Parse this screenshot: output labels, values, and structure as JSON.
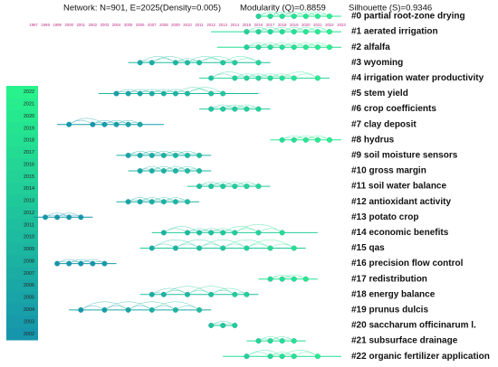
{
  "chart_data": {
    "type": "timeline",
    "header": [
      "Network: N=901, E=2025(Density=0.005)",
      "Modularity (Q)=0.8859",
      "Silhouette (S)=0.9346"
    ],
    "xlim": [
      1997,
      2023
    ],
    "xticks": [
      1997,
      1998,
      1999,
      2000,
      2001,
      2002,
      2003,
      2004,
      2005,
      2006,
      2007,
      2008,
      2009,
      2010,
      2011,
      2012,
      2013,
      2014,
      2015,
      2016,
      2017,
      2018,
      2019,
      2020,
      2021,
      2022,
      2023
    ],
    "colorbar": [
      2022,
      2021,
      2020,
      2019,
      2018,
      2017,
      2016,
      2015,
      2014,
      2013,
      2012,
      2011,
      2010,
      2009,
      2008,
      2007,
      2006,
      2005,
      2004,
      2003,
      2002
    ],
    "series": [
      {
        "name": "#0 partial root-zone drying",
        "span": [
          2016,
          2023
        ],
        "x": [
          2016,
          2017,
          2018,
          2019,
          2020,
          2021,
          2022
        ]
      },
      {
        "name": "#1 aerated irrigation",
        "span": [
          2012,
          2023
        ],
        "x": [
          2015,
          2016,
          2017,
          2018,
          2019,
          2020,
          2021,
          2022
        ]
      },
      {
        "name": "#2 alfalfa",
        "span": [
          2012.5,
          2023
        ],
        "x": [
          2015,
          2016,
          2017,
          2018,
          2019,
          2020,
          2021,
          2022
        ]
      },
      {
        "name": "#3 wyoming",
        "span": [
          2005,
          2017
        ],
        "x": [
          2006,
          2007,
          2009,
          2010,
          2011,
          2013,
          2014,
          2016
        ]
      },
      {
        "name": "#4 irrigation water productivity",
        "span": [
          2011,
          2022
        ],
        "x": [
          2012,
          2014,
          2015,
          2016,
          2017,
          2018,
          2019,
          2021
        ]
      },
      {
        "name": "#5 stem yield",
        "span": [
          2002.5,
          2016
        ],
        "x": [
          2004,
          2005,
          2006,
          2007,
          2008,
          2009,
          2010,
          2012,
          2013
        ]
      },
      {
        "name": "#6 crop coefficients",
        "span": [
          2011,
          2017
        ],
        "x": [
          2012,
          2013,
          2014,
          2015,
          2016
        ]
      },
      {
        "name": "#7 clay deposit",
        "span": [
          1999,
          2008
        ],
        "x": [
          2000,
          2002,
          2003,
          2004,
          2005,
          2006
        ]
      },
      {
        "name": "#8 hydrus",
        "span": [
          2017,
          2023
        ],
        "x": [
          2018,
          2019,
          2020,
          2021,
          2022
        ]
      },
      {
        "name": "#9 soil moisture sensors",
        "span": [
          2004,
          2012
        ],
        "x": [
          2005,
          2006,
          2007,
          2008,
          2009,
          2010,
          2011
        ]
      },
      {
        "name": "#10 gross margin",
        "span": [
          2005,
          2012
        ],
        "x": [
          2006,
          2007,
          2008,
          2009,
          2010,
          2011
        ]
      },
      {
        "name": "#11 soil water balance",
        "span": [
          2010,
          2017
        ],
        "x": [
          2011,
          2012,
          2013,
          2014,
          2015,
          2016
        ]
      },
      {
        "name": "#12 antioxidant activity",
        "span": [
          2004,
          2011
        ],
        "x": [
          2005,
          2006,
          2007,
          2008,
          2009,
          2010
        ]
      },
      {
        "name": "#13 potato crop",
        "span": [
          1997,
          2002
        ],
        "x": [
          1998,
          1999,
          2000,
          2001
        ]
      },
      {
        "name": "#14 economic benefits",
        "span": [
          2007,
          2021
        ],
        "x": [
          2008,
          2010,
          2011,
          2012,
          2013,
          2014,
          2016,
          2018
        ]
      },
      {
        "name": "#15 qas",
        "span": [
          2006,
          2020
        ],
        "x": [
          2007,
          2009,
          2011,
          2013,
          2015,
          2017,
          2019
        ]
      },
      {
        "name": "#16 precision flow control",
        "span": [
          1999,
          2004
        ],
        "x": [
          1999,
          2000,
          2001,
          2002,
          2003
        ]
      },
      {
        "name": "#17 redistribution",
        "span": [
          2016,
          2021
        ],
        "x": [
          2017,
          2018,
          2019,
          2020
        ]
      },
      {
        "name": "#18 energy balance",
        "span": [
          2006,
          2016
        ],
        "x": [
          2007,
          2008,
          2010,
          2012,
          2014,
          2015
        ]
      },
      {
        "name": "#19 prunus dulcis",
        "span": [
          2000,
          2012
        ],
        "x": [
          2001,
          2003,
          2005,
          2007,
          2009,
          2011
        ]
      },
      {
        "name": "#20 saccharum officinarum l.",
        "span": [
          2012,
          2014
        ],
        "x": [
          2012,
          2013,
          2014
        ]
      },
      {
        "name": "#21 subsurface drainage",
        "span": [
          2015,
          2020
        ],
        "x": [
          2016,
          2017,
          2018,
          2019
        ]
      },
      {
        "name": "#22 organic fertilizer application",
        "span": [
          2013,
          2023
        ],
        "x": [
          2015,
          2017,
          2018,
          2019,
          2021
        ]
      }
    ]
  }
}
